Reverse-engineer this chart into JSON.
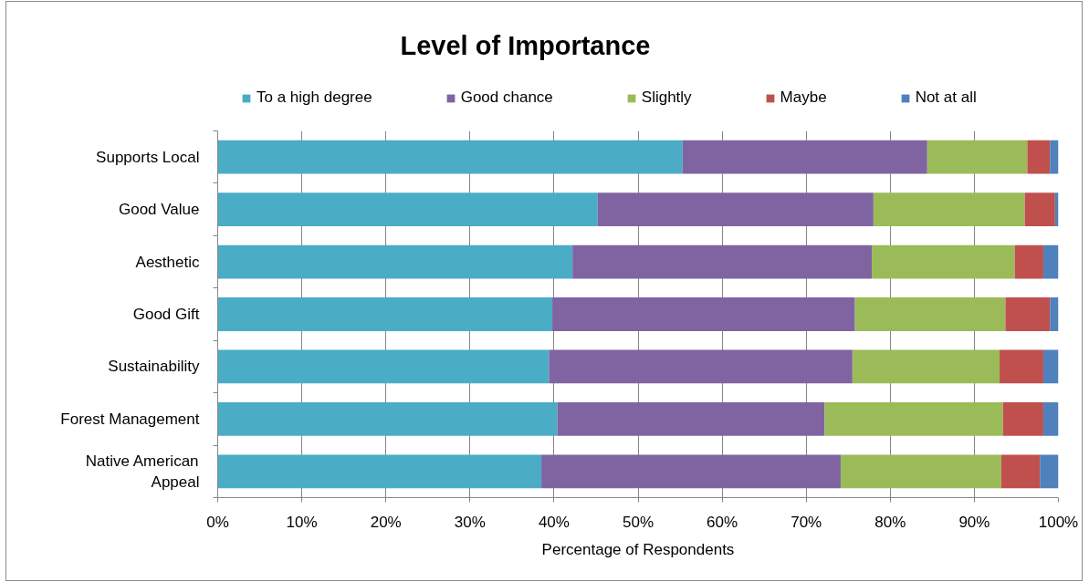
{
  "chart_data": {
    "type": "bar",
    "title": "Level of Importance",
    "xlabel": "Percentage of Respondents",
    "orientation": "horizontal",
    "stacked": true,
    "categories": [
      "Supports Local",
      "Good Value",
      "Aesthetic",
      "Good Gift",
      "Sustainability",
      "Forest Management",
      "Native American Appeal"
    ],
    "series": [
      {
        "name": "To a high degree",
        "color": "#4bacc6",
        "values": [
          55.3,
          45.2,
          42.2,
          39.8,
          39.4,
          40.4,
          38.5
        ]
      },
      {
        "name": "Good chance",
        "color": "#8064a2",
        "values": [
          29.1,
          32.8,
          35.6,
          36.0,
          36.1,
          31.8,
          35.6
        ]
      },
      {
        "name": "Slightly",
        "color": "#9bbb59",
        "values": [
          11.9,
          18.0,
          17.0,
          17.9,
          17.5,
          21.2,
          19.1
        ]
      },
      {
        "name": "Maybe",
        "color": "#c0504d",
        "values": [
          2.7,
          3.6,
          3.4,
          5.3,
          5.2,
          4.8,
          4.6
        ]
      },
      {
        "name": "Not at all",
        "color": "#4f81bd",
        "values": [
          1.0,
          0.4,
          1.8,
          1.0,
          1.8,
          1.8,
          2.2
        ]
      }
    ],
    "xlim": [
      0,
      100
    ],
    "xticks": [
      {
        "value": 0,
        "label": "0%"
      },
      {
        "value": 10,
        "label": "10%"
      },
      {
        "value": 20,
        "label": "20%"
      },
      {
        "value": 30,
        "label": "30%"
      },
      {
        "value": 40,
        "label": "40%"
      },
      {
        "value": 50,
        "label": "50%"
      },
      {
        "value": 60,
        "label": "60%"
      },
      {
        "value": 70,
        "label": "70%"
      },
      {
        "value": 80,
        "label": "80%"
      },
      {
        "value": 90,
        "label": "90%"
      },
      {
        "value": 100,
        "label": "100%"
      }
    ],
    "grid": "x",
    "legend": "top"
  }
}
